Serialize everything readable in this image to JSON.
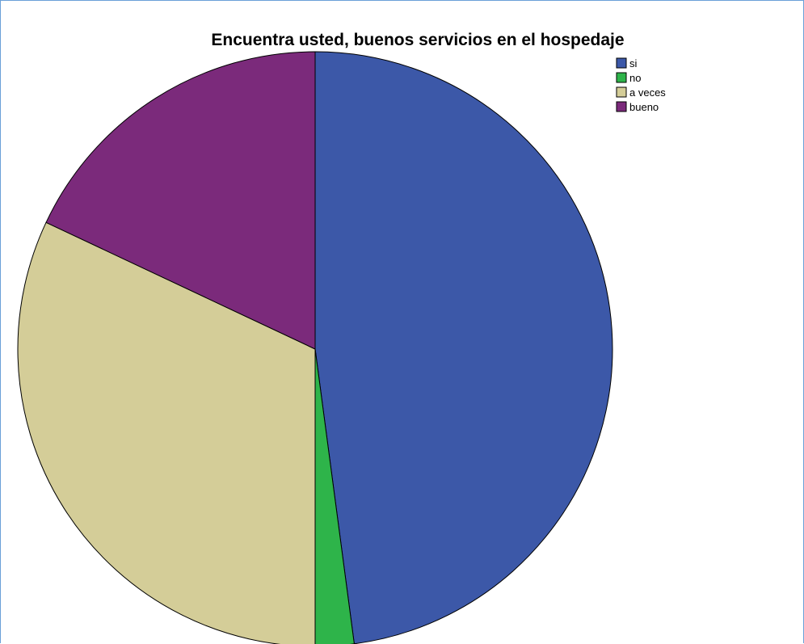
{
  "chart_data": {
    "type": "pie",
    "title": "Encuentra usted, buenos servicios en el hospedaje",
    "categories": [
      "si",
      "no",
      "a veces",
      "bueno"
    ],
    "values": [
      47.9,
      2.1,
      32.0,
      18.0
    ],
    "colors": [
      "#3c58a8",
      "#2eb44a",
      "#d4cd98",
      "#7b2a7b"
    ],
    "start_angle": "12 o'clock",
    "direction": "clockwise",
    "legend_position": "top-right"
  }
}
